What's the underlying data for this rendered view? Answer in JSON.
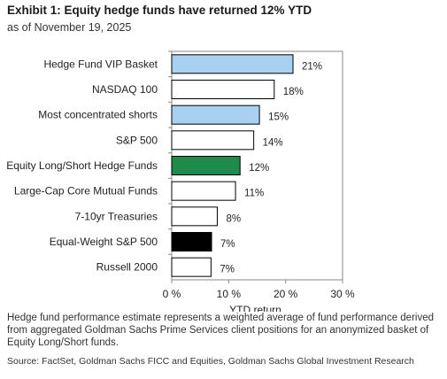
{
  "header": {
    "title": "Exhibit 1: Equity hedge funds have returned 12% YTD",
    "subtitle": "as of November 19, 2025"
  },
  "footer": {
    "note": "Hedge fund performance estimate represents a weighted average of fund performance derived from aggregated Goldman Sachs Prime Services client positions for an anonymized basket of Equity Long/Short funds.",
    "source": "Source: FactSet, Goldman Sachs FICC and Equities, Goldman Sachs Global Investment Research"
  },
  "chart_data": {
    "type": "bar",
    "orientation": "horizontal",
    "categories": [
      "Hedge Fund VIP Basket",
      "NASDAQ 100",
      "Most concentrated shorts",
      "S&P 500",
      "Equity Long/Short Hedge Funds",
      "Large-Cap Core Mutual Funds",
      "7-10yr Treasuries",
      "Equal-Weight S&P 500",
      "Russell 2000"
    ],
    "values": [
      21.3,
      18.0,
      15.4,
      14.4,
      12.0,
      11.2,
      8.0,
      7.0,
      6.9
    ],
    "data_labels": [
      "21%",
      "18%",
      "15%",
      "14%",
      "12%",
      "11%",
      "8%",
      "7%",
      "7%"
    ],
    "bar_colors": [
      "#a8d0f0",
      "#ffffff",
      "#a8d0f0",
      "#ffffff",
      "#1e8a4c",
      "#ffffff",
      "#ffffff",
      "#000000",
      "#ffffff"
    ],
    "xlabel": "YTD return",
    "xlim": [
      0,
      30
    ],
    "xticks": [
      0,
      10,
      20,
      30
    ],
    "xtick_labels": [
      "0 %",
      "10 %",
      "20 %",
      "30 %"
    ],
    "grid": false,
    "legend": "none"
  }
}
